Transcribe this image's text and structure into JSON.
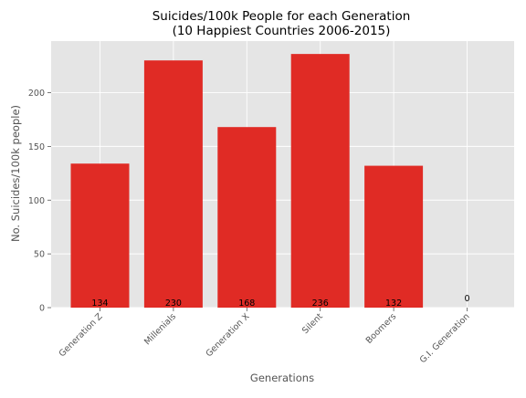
{
  "chart_data": {
    "type": "bar",
    "title_line1": "Suicides/100k People for each Generation",
    "title_line2": "(10 Happiest Countries 2006-2015)",
    "xlabel": "Generations",
    "ylabel": "No. Suicides/100k people)",
    "categories": [
      "Generation Z",
      "Millenials",
      "Generation X",
      "Silent",
      "Boomers",
      "G.I. Generation"
    ],
    "values": [
      134,
      230,
      168,
      236,
      132,
      0
    ],
    "data_labels": [
      "134",
      "230",
      "168",
      "236",
      "132",
      "0"
    ],
    "ylim": [
      0,
      248
    ],
    "yticks": [
      0,
      50,
      100,
      150,
      200
    ],
    "grid": true,
    "style": "ggplot",
    "colors": {
      "bar": "#e02b25",
      "axes_bg": "#e5e5e5",
      "grid": "#ffffff",
      "tick_text": "#555555",
      "label_text": "#555555",
      "title_text": "#000000"
    }
  }
}
